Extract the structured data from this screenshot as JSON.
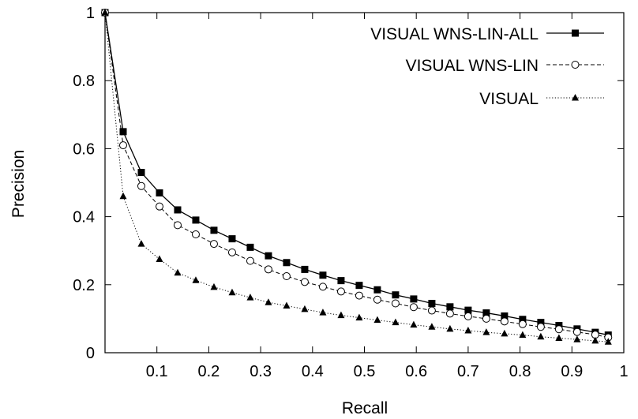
{
  "chart_data": {
    "type": "line",
    "title": "",
    "xlabel": "Recall",
    "ylabel": "Precision",
    "xlim": [
      0,
      1
    ],
    "ylim": [
      0,
      1
    ],
    "grid": false,
    "legend_position": "top-right",
    "x_ticks": [
      "0.1",
      "0.2",
      "0.3",
      "0.4",
      "0.5",
      "0.6",
      "0.7",
      "0.8",
      "0.9",
      "1"
    ],
    "y_ticks": [
      "0",
      "0.2",
      "0.4",
      "0.6",
      "0.8",
      "1"
    ],
    "x": [
      0.0,
      0.035,
      0.07,
      0.105,
      0.14,
      0.175,
      0.21,
      0.245,
      0.28,
      0.315,
      0.35,
      0.385,
      0.42,
      0.455,
      0.49,
      0.525,
      0.56,
      0.595,
      0.63,
      0.665,
      0.7,
      0.735,
      0.77,
      0.805,
      0.84,
      0.875,
      0.91,
      0.945,
      0.97
    ],
    "series": [
      {
        "name": "VISUAL WNS-LIN-ALL",
        "marker": "filled-square",
        "line_style": "solid",
        "color": "#000000",
        "values": [
          1.0,
          0.65,
          0.53,
          0.47,
          0.42,
          0.39,
          0.36,
          0.335,
          0.31,
          0.285,
          0.265,
          0.245,
          0.228,
          0.212,
          0.198,
          0.185,
          0.17,
          0.158,
          0.145,
          0.135,
          0.125,
          0.117,
          0.108,
          0.098,
          0.089,
          0.08,
          0.07,
          0.06,
          0.052
        ]
      },
      {
        "name": "VISUAL WNS-LIN",
        "marker": "open-circle",
        "line_style": "dashed",
        "color": "#000000",
        "values": [
          1.0,
          0.61,
          0.49,
          0.43,
          0.375,
          0.348,
          0.32,
          0.295,
          0.27,
          0.245,
          0.225,
          0.208,
          0.194,
          0.18,
          0.168,
          0.156,
          0.145,
          0.134,
          0.124,
          0.115,
          0.107,
          0.1,
          0.092,
          0.084,
          0.076,
          0.069,
          0.061,
          0.053,
          0.045
        ]
      },
      {
        "name": "VISUAL",
        "marker": "filled-triangle",
        "line_style": "dotted",
        "color": "#000000",
        "values": [
          1.0,
          0.46,
          0.32,
          0.275,
          0.235,
          0.213,
          0.193,
          0.177,
          0.162,
          0.148,
          0.138,
          0.128,
          0.118,
          0.11,
          0.103,
          0.096,
          0.089,
          0.082,
          0.076,
          0.07,
          0.065,
          0.06,
          0.056,
          0.052,
          0.047,
          0.043,
          0.039,
          0.035,
          0.032
        ]
      }
    ]
  }
}
